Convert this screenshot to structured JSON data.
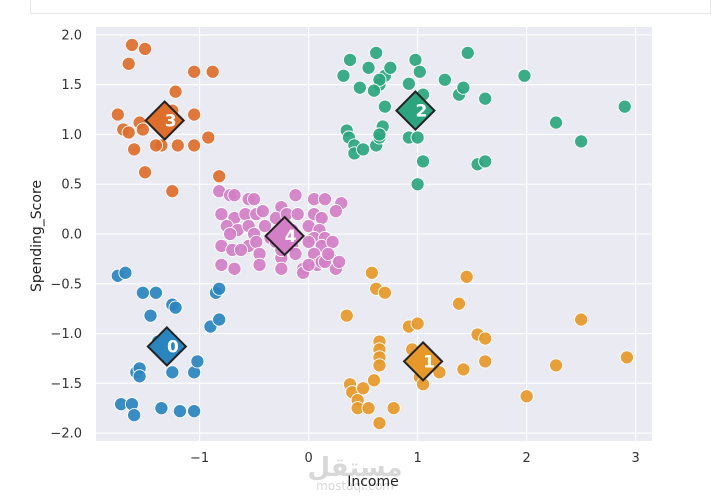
{
  "chart_data": {
    "type": "scatter",
    "title": "",
    "xlabel": "Income",
    "ylabel": "Spending_Score",
    "xlim": [
      -1.95,
      3.15
    ],
    "ylim": [
      -2.08,
      2.08
    ],
    "xticks": [
      -1,
      0,
      1,
      2,
      3
    ],
    "xtick_labels": [
      "−1",
      "0",
      "1",
      "2",
      "3"
    ],
    "yticks": [
      -2.0,
      -1.5,
      -1.0,
      -0.5,
      0.0,
      0.5,
      1.0,
      1.5,
      2.0
    ],
    "ytick_labels": [
      "−2.0",
      "−1.5",
      "−1.0",
      "−0.5",
      "0.0",
      "0.5",
      "1.0",
      "1.5",
      "2.0"
    ],
    "grid": true,
    "background": "#eaeaf2",
    "point_stroke": "#ffffff",
    "centroid_stroke": "#222222",
    "series": [
      {
        "name": "0",
        "color": "#2a84be",
        "centroid": [
          -1.3,
          -1.13
        ],
        "points": [
          [
            -1.75,
            -0.42
          ],
          [
            -1.68,
            -0.39
          ],
          [
            -1.52,
            -0.59
          ],
          [
            -1.4,
            -0.59
          ],
          [
            -1.45,
            -0.82
          ],
          [
            -1.25,
            -0.71
          ],
          [
            -1.22,
            -0.74
          ],
          [
            -0.85,
            -0.59
          ],
          [
            -0.82,
            -0.55
          ],
          [
            -0.9,
            -0.93
          ],
          [
            -0.82,
            -0.86
          ],
          [
            -1.58,
            -1.39
          ],
          [
            -1.55,
            -1.35
          ],
          [
            -1.55,
            -1.43
          ],
          [
            -1.25,
            -1.39
          ],
          [
            -1.05,
            -1.39
          ],
          [
            -1.02,
            -1.28
          ],
          [
            -1.72,
            -1.71
          ],
          [
            -1.62,
            -1.71
          ],
          [
            -1.6,
            -1.82
          ],
          [
            -1.35,
            -1.75
          ],
          [
            -1.18,
            -1.78
          ],
          [
            -1.05,
            -1.78
          ],
          [
            -1.38,
            -1.08
          ]
        ]
      },
      {
        "name": "1",
        "color": "#e6982a",
        "centroid": [
          1.05,
          -1.28
        ],
        "points": [
          [
            0.35,
            -0.82
          ],
          [
            0.62,
            -0.55
          ],
          [
            0.7,
            -0.59
          ],
          [
            0.58,
            -0.39
          ],
          [
            0.92,
            -0.93
          ],
          [
            1.0,
            -0.9
          ],
          [
            1.45,
            -0.43
          ],
          [
            1.38,
            -0.7
          ],
          [
            1.55,
            -1.01
          ],
          [
            1.62,
            -1.05
          ],
          [
            2.5,
            -0.86
          ],
          [
            0.65,
            -1.08
          ],
          [
            0.65,
            -1.16
          ],
          [
            0.65,
            -1.24
          ],
          [
            0.65,
            -1.32
          ],
          [
            0.95,
            -1.16
          ],
          [
            1.0,
            -1.28
          ],
          [
            1.02,
            -1.44
          ],
          [
            1.05,
            -1.51
          ],
          [
            1.2,
            -1.39
          ],
          [
            1.42,
            -1.36
          ],
          [
            1.62,
            -1.28
          ],
          [
            2.27,
            -1.32
          ],
          [
            2.92,
            -1.24
          ],
          [
            0.38,
            -1.51
          ],
          [
            0.4,
            -1.59
          ],
          [
            0.5,
            -1.55
          ],
          [
            0.6,
            -1.47
          ],
          [
            0.45,
            -1.67
          ],
          [
            0.45,
            -1.75
          ],
          [
            0.55,
            -1.75
          ],
          [
            0.78,
            -1.75
          ],
          [
            2.0,
            -1.63
          ],
          [
            0.65,
            -1.9
          ]
        ]
      },
      {
        "name": "2",
        "color": "#2ca57f",
        "centroid": [
          0.98,
          1.24
        ],
        "points": [
          [
            0.32,
            1.59
          ],
          [
            0.38,
            1.75
          ],
          [
            0.47,
            1.47
          ],
          [
            0.55,
            1.67
          ],
          [
            0.62,
            1.82
          ],
          [
            0.7,
            1.59
          ],
          [
            0.65,
            1.5
          ],
          [
            0.65,
            1.55
          ],
          [
            0.6,
            1.44
          ],
          [
            0.75,
            1.67
          ],
          [
            0.98,
            1.75
          ],
          [
            1.02,
            1.63
          ],
          [
            0.92,
            1.51
          ],
          [
            1.05,
            1.4
          ],
          [
            1.25,
            1.55
          ],
          [
            1.38,
            1.4
          ],
          [
            1.42,
            1.47
          ],
          [
            1.46,
            1.82
          ],
          [
            1.62,
            1.36
          ],
          [
            1.98,
            1.59
          ],
          [
            2.9,
            1.28
          ],
          [
            0.7,
            1.28
          ],
          [
            0.35,
            1.04
          ],
          [
            0.37,
            0.97
          ],
          [
            0.42,
            0.89
          ],
          [
            0.42,
            0.81
          ],
          [
            0.5,
            0.85
          ],
          [
            0.62,
            0.89
          ],
          [
            0.65,
            0.97
          ],
          [
            0.68,
            1.08
          ],
          [
            0.65,
            1.0
          ],
          [
            0.92,
            0.97
          ],
          [
            1.0,
            0.97
          ],
          [
            2.27,
            1.12
          ],
          [
            2.5,
            0.93
          ],
          [
            1.05,
            0.73
          ],
          [
            1.55,
            0.7
          ],
          [
            1.62,
            0.73
          ],
          [
            1.0,
            0.5
          ]
        ]
      },
      {
        "name": "3",
        "color": "#dd6e2c",
        "centroid": [
          -1.32,
          1.14
        ],
        "points": [
          [
            -1.62,
            1.9
          ],
          [
            -1.5,
            1.86
          ],
          [
            -1.65,
            1.71
          ],
          [
            -1.22,
            1.43
          ],
          [
            -1.05,
            1.63
          ],
          [
            -0.88,
            1.63
          ],
          [
            -1.75,
            1.2
          ],
          [
            -1.7,
            1.05
          ],
          [
            -1.65,
            1.02
          ],
          [
            -1.55,
            1.12
          ],
          [
            -1.52,
            1.05
          ],
          [
            -1.25,
            1.24
          ],
          [
            -1.05,
            1.2
          ],
          [
            -1.35,
            0.89
          ],
          [
            -1.4,
            0.89
          ],
          [
            -1.2,
            0.89
          ],
          [
            -1.05,
            0.89
          ],
          [
            -0.92,
            0.97
          ],
          [
            -1.6,
            0.85
          ],
          [
            -1.5,
            0.62
          ],
          [
            -0.82,
            0.58
          ],
          [
            -1.25,
            0.43
          ]
        ]
      },
      {
        "name": "4",
        "color": "#d27fc6",
        "centroid": [
          -0.22,
          -0.02
        ],
        "points": [
          [
            -0.82,
            0.43
          ],
          [
            -0.72,
            0.39
          ],
          [
            -0.68,
            0.39
          ],
          [
            -0.55,
            0.35
          ],
          [
            -0.5,
            0.35
          ],
          [
            -0.25,
            0.27
          ],
          [
            -0.12,
            0.39
          ],
          [
            0.05,
            0.35
          ],
          [
            0.15,
            0.35
          ],
          [
            0.3,
            0.31
          ],
          [
            0.25,
            0.23
          ],
          [
            -0.8,
            0.2
          ],
          [
            -0.68,
            0.16
          ],
          [
            -0.58,
            0.2
          ],
          [
            -0.48,
            0.2
          ],
          [
            -0.42,
            0.23
          ],
          [
            -0.3,
            0.16
          ],
          [
            -0.2,
            0.2
          ],
          [
            -0.1,
            0.2
          ],
          [
            0.05,
            0.2
          ],
          [
            0.12,
            0.16
          ],
          [
            -0.75,
            0.08
          ],
          [
            -0.65,
            0.04
          ],
          [
            -0.55,
            0.08
          ],
          [
            -0.4,
            0.08
          ],
          [
            -0.25,
            0.04
          ],
          [
            -0.15,
            0.04
          ],
          [
            0.0,
            0.08
          ],
          [
            0.1,
            0.04
          ],
          [
            -0.72,
            0.0
          ],
          [
            -0.5,
            0.0
          ],
          [
            -0.35,
            -0.04
          ],
          [
            -0.18,
            0.0
          ],
          [
            0.05,
            -0.04
          ],
          [
            0.15,
            -0.04
          ],
          [
            -0.8,
            -0.12
          ],
          [
            -0.7,
            -0.16
          ],
          [
            -0.55,
            -0.12
          ],
          [
            -0.48,
            -0.08
          ],
          [
            -0.3,
            -0.08
          ],
          [
            -0.15,
            -0.12
          ],
          [
            0.0,
            -0.08
          ],
          [
            0.12,
            -0.12
          ],
          [
            0.22,
            -0.08
          ],
          [
            -0.62,
            -0.16
          ],
          [
            -0.45,
            -0.2
          ],
          [
            -0.25,
            -0.24
          ],
          [
            -0.12,
            -0.2
          ],
          [
            0.05,
            -0.2
          ],
          [
            0.2,
            -0.24
          ],
          [
            -0.8,
            -0.31
          ],
          [
            -0.68,
            -0.35
          ],
          [
            -0.45,
            -0.31
          ],
          [
            -0.25,
            -0.35
          ],
          [
            -0.05,
            -0.35
          ],
          [
            0.08,
            -0.31
          ],
          [
            0.12,
            -0.28
          ],
          [
            0.25,
            -0.35
          ],
          [
            0.28,
            -0.28
          ],
          [
            -0.05,
            -0.39
          ],
          [
            0.0,
            -0.31
          ],
          [
            0.15,
            -0.28
          ],
          [
            0.18,
            -0.2
          ],
          [
            -0.25,
            -0.16
          ]
        ]
      }
    ]
  },
  "watermark": {
    "main": "مستقل",
    "sub": "mostaql.com"
  }
}
